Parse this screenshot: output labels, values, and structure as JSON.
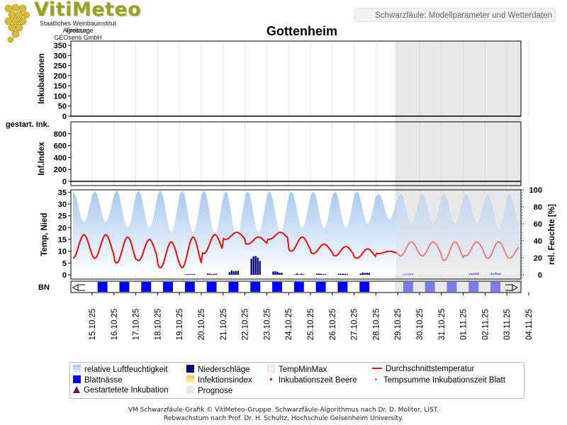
{
  "header": {
    "logo_title": "VitiMeteo",
    "logo_lines": [
      "Staatliches Weinbauinstitut Freiburg",
      "Agroscope",
      "GEOsens GmbH"
    ],
    "badge": "Schwarzfäule: Modellparameter und Wetterdaten",
    "location": "Gottenheim"
  },
  "panels": {
    "inkubationen": {
      "label": "Inkubationen",
      "ticks": [
        0,
        50,
        100,
        150,
        200,
        250,
        300,
        350
      ],
      "range": [
        0,
        350
      ]
    },
    "gestartet": {
      "label": "gestart. Ink."
    },
    "infindex": {
      "label": "Inf.Index",
      "ticks": [
        0,
        200,
        400,
        600,
        800
      ],
      "range": [
        0,
        1000
      ]
    },
    "weather": {
      "left_label": "Temp, Nied",
      "right_label": "rel. Feuchte [%]",
      "left_ticks": [
        0,
        5,
        10,
        15,
        20,
        25,
        30,
        35
      ],
      "right_ticks": [
        0,
        20,
        40,
        60,
        80,
        100
      ],
      "left_range": [
        0,
        36
      ],
      "right_range": [
        0,
        100
      ]
    },
    "bn": {
      "label": "BN"
    }
  },
  "colors": {
    "humidity": "#a8c8ee",
    "temperature": "#e01010",
    "temperature_forecast": "#f08080",
    "precipitation": "#0a0a7a",
    "leaf_wetness": "#0000ee",
    "leaf_wetness_forecast": "#7a7ae8",
    "forecast_bg": "#e8e8e8"
  },
  "chart_data": {
    "type": "line",
    "x": [
      "15.10.25",
      "16.10.25",
      "17.10.25",
      "18.10.25",
      "19.10.25",
      "20.10.25",
      "21.10.25",
      "22.10.25",
      "23.10.25",
      "24.10.25",
      "25.10.25",
      "26.10.25",
      "27.10.25",
      "28.10.25",
      "29.10.25",
      "30.10.25",
      "31.10.25",
      "01.11.25",
      "02.11.25",
      "03.11.25",
      "04.11.25"
    ],
    "forecast_start": 14,
    "series": [
      {
        "name": "Durchschnittstemperatur",
        "axis": "left",
        "daily_min": [
          7,
          5,
          6,
          3,
          3,
          9,
          15,
          13,
          15,
          10,
          9,
          8,
          7,
          9,
          8,
          8,
          6,
          8,
          7,
          7,
          7
        ],
        "daily_max": [
          17,
          16,
          15,
          14,
          16,
          17,
          18,
          16,
          18,
          16,
          13,
          12,
          11,
          10,
          14,
          14,
          14,
          14,
          14,
          12,
          9
        ]
      },
      {
        "name": "relative Luftfeuchtigkeit",
        "axis": "right",
        "daily_min": [
          62,
          55,
          55,
          50,
          50,
          48,
          45,
          50,
          50,
          55,
          55,
          55,
          60,
          65,
          60,
          60,
          60,
          60,
          55,
          55,
          60
        ],
        "daily_max": [
          98,
          99,
          99,
          99,
          99,
          99,
          98,
          98,
          98,
          98,
          98,
          98,
          98,
          95,
          95,
          95,
          95,
          95,
          95,
          95,
          95
        ]
      },
      {
        "name": "Niederschläge",
        "axis": "left",
        "values_mm": [
          0,
          0,
          0,
          0,
          0,
          0.3,
          0.5,
          2,
          8,
          1.5,
          0.5,
          0.5,
          0.5,
          1,
          0,
          0.5,
          0,
          0,
          1,
          1,
          0
        ]
      },
      {
        "name": "Blattnässe",
        "wet_days": [
          1,
          2,
          3,
          4,
          5,
          6,
          7,
          8,
          9,
          10,
          11,
          12,
          13,
          15,
          16,
          17,
          18,
          19
        ]
      },
      {
        "name": "Inkubationen",
        "axis": "inkubationen",
        "values": [
          0,
          0,
          0,
          0,
          0,
          0,
          0,
          0,
          0,
          0,
          0,
          0,
          0,
          0,
          0,
          0,
          0,
          0,
          0,
          0,
          0
        ]
      },
      {
        "name": "Inf.Index",
        "axis": "infindex",
        "values": [
          0,
          0,
          0,
          0,
          0,
          0,
          0,
          0,
          0,
          0,
          0,
          0,
          0,
          0,
          0,
          0,
          0,
          0,
          0,
          0,
          0
        ]
      }
    ]
  },
  "legend": [
    {
      "label": "relative Luftfeuchtigkeit",
      "swatch": "humidity"
    },
    {
      "label": "Niederschläge",
      "swatch": "precip"
    },
    {
      "label": "TempMinMax",
      "swatch": "tempminmax"
    },
    {
      "label": "Durchschnittstemperatur",
      "swatch": "avgtemp"
    },
    {
      "label": "Blattnässe",
      "swatch": "leaf"
    },
    {
      "label": "Infektionsindex",
      "swatch": "infindex"
    },
    {
      "label": "Inkubationszeit Beere",
      "swatch": "dot-red"
    },
    {
      "label": "Tempsumme Inkubationszeit Blatt",
      "swatch": "dot-gray"
    },
    {
      "label": "Gestartetete Inkubation",
      "swatch": "triangle"
    },
    {
      "label": "Prognose",
      "swatch": "forecast"
    }
  ],
  "footer": {
    "line1": "VM Schwarzfäule-Grafik © VitiMeteo-Gruppe. Schwarzfäule-Algorithmus nach Dr. D. Molitor, LIST.",
    "line2": "Rebwachstum nach Prof. Dr. H. Schultz, Hochschule Geisenheim University."
  }
}
